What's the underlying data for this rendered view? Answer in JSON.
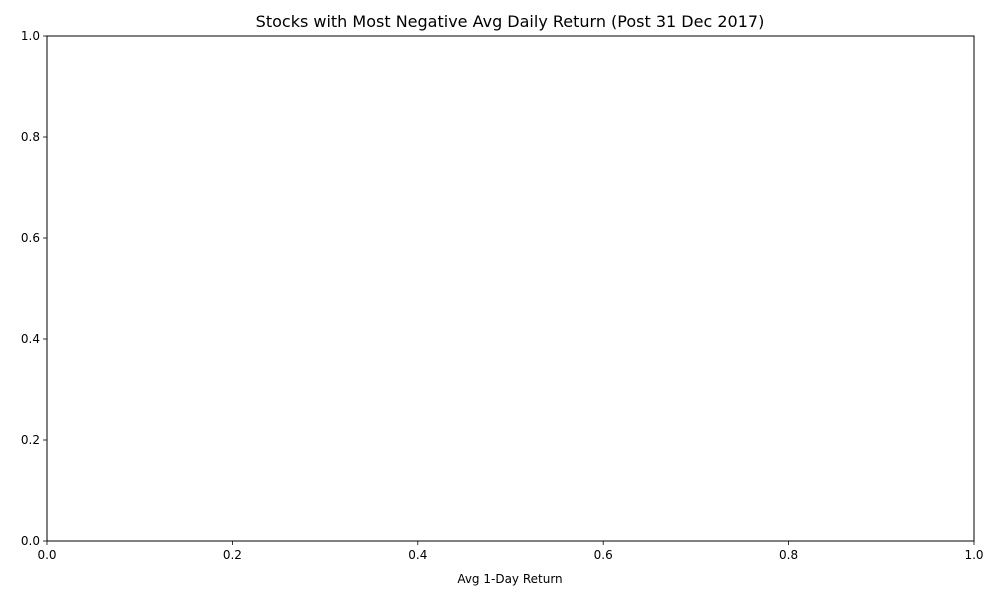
{
  "chart_data": {
    "type": "bar",
    "title": "Stocks with Most Negative Avg Daily Return (Post 31 Dec 2017)",
    "xlabel": "Avg 1-Day Return",
    "ylabel": "",
    "categories": [],
    "values": [],
    "xlim": [
      0,
      1
    ],
    "ylim": [
      0,
      1
    ],
    "x_ticks": [
      "0.0",
      "0.2",
      "0.4",
      "0.6",
      "0.8",
      "1.0"
    ],
    "y_ticks": [
      "0.0",
      "0.2",
      "0.4",
      "0.6",
      "0.8",
      "1.0"
    ],
    "grid": false,
    "legend": "none"
  }
}
